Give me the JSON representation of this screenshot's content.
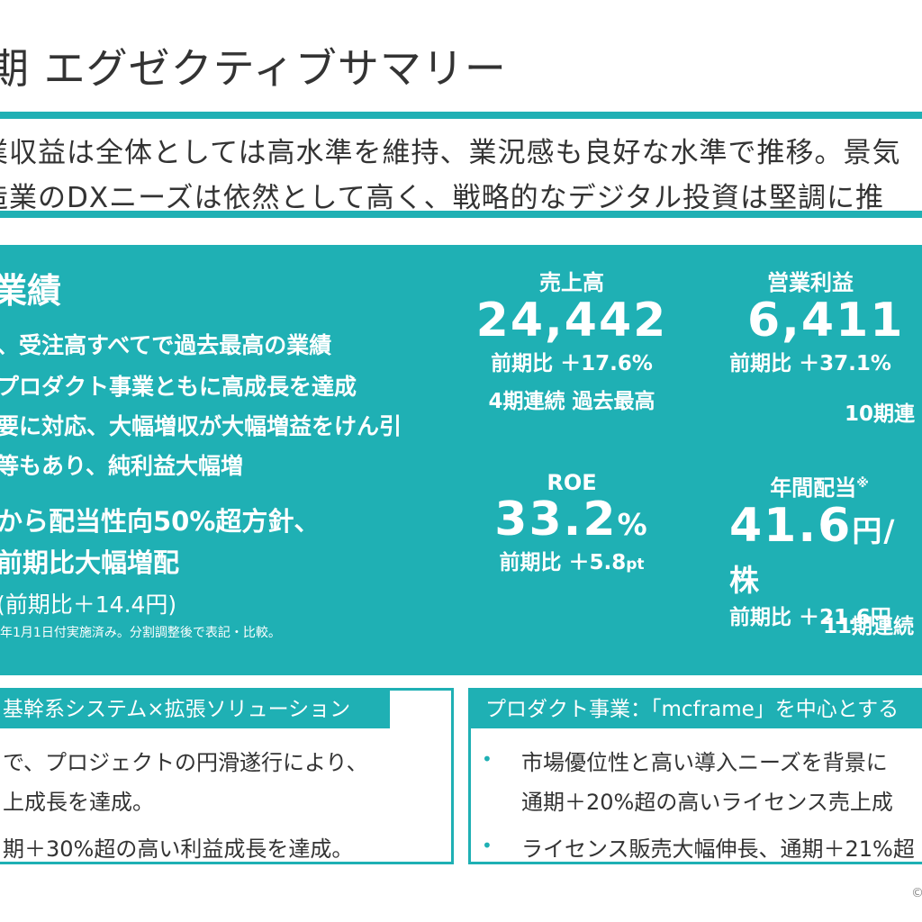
{
  "page_title": "期 エグゼクティブサマリー",
  "summary": {
    "line1": "業収益は全体としては高水準を維持、業況感も良好な水準で推移。景気",
    "line2": "造業のDXニーズは依然として高く、戦略的なデジタル投資は堅調に推"
  },
  "results": {
    "heading": "業績",
    "bullets": [
      "、受注高すべてで過去最高の業績",
      "プロダクト事業ともに高成長を達成",
      "要に対応、大幅増収が大幅増益をけん引",
      "等もあり、純利益大幅増"
    ],
    "dividend_lines": [
      "から配当性向50%超方針、",
      "前期比大幅増配",
      "(前期比＋14.4円)"
    ],
    "note": "年1月1日付実施済み。分割調整後で表記・比較。"
  },
  "kpis": {
    "sales": {
      "label": "売上高",
      "value": "24,442",
      "comparison": "前期比 ＋17.6%",
      "record": "4期連続 過去最高"
    },
    "operating_profit": {
      "label": "営業利益",
      "value": "6,411",
      "comparison": "前期比 ＋37.1%",
      "record": "10期連"
    },
    "roe": {
      "label": "ROE",
      "value": "33.2",
      "unit": "%",
      "comparison": "前期比 ＋5.8",
      "comparison_unit": "pt"
    },
    "dividend": {
      "label": "年間配当",
      "mark": "※",
      "value": "41.6",
      "unit": "円/株",
      "comparison": "前期比 ＋21.6円",
      "record": "11期連続"
    }
  },
  "left_box": {
    "heading": "基幹系システム×拡張ソリューション",
    "lines": [
      "で、プロジェクトの円滑遂行により、",
      "上成長を達成。",
      "期＋30%超の高い利益成長を達成。"
    ]
  },
  "right_box": {
    "heading": "プロダクト事業：「mcframe」を中心とする",
    "bullet_mark": "•",
    "lines": [
      "市場優位性と高い導入ニーズを背景に",
      "通期＋20%超の高いライセンス売上成",
      "ライセンス販売大幅伸長、通期＋21%超"
    ]
  },
  "copyright": "©"
}
